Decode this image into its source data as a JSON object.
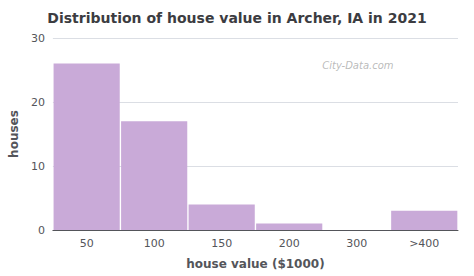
{
  "chart_data": {
    "type": "bar",
    "title": "Distribution of house value in Archer, IA in 2021",
    "xlabel": "house value ($1000)",
    "ylabel": "houses",
    "categories": [
      "50",
      "100",
      "150",
      "200",
      "300",
      ">400"
    ],
    "values": [
      26,
      17,
      4,
      1,
      0,
      3
    ],
    "color": "#c9aad8",
    "ylim": [
      0,
      30
    ],
    "yticks": [
      0,
      10,
      20,
      30
    ],
    "grid": true,
    "annotations": [
      "City-Data.com"
    ]
  }
}
